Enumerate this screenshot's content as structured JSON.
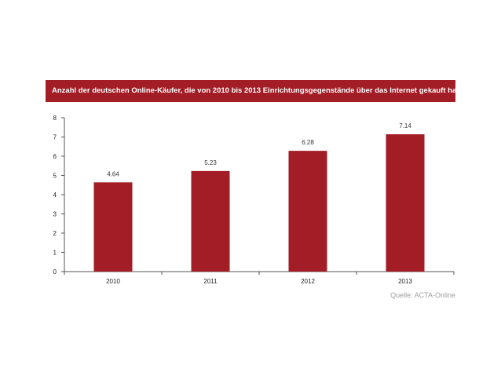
{
  "chart_data": {
    "type": "bar",
    "title": "Anzahl der deutschen Online-Käufer, die von 2010 bis 2013 Einrichtungsgegenstände über das Internet gekauft haben",
    "categories": [
      "2010",
      "2011",
      "2012",
      "2013"
    ],
    "values": [
      4.64,
      5.23,
      6.28,
      7.14
    ],
    "value_labels": [
      "4.64",
      "5.23",
      "6.28",
      "7.14"
    ],
    "xlabel": "",
    "ylabel": "",
    "ylim": [
      0,
      8
    ],
    "yticks": [
      "0",
      "1",
      "2",
      "3",
      "4",
      "5",
      "6",
      "7",
      "8"
    ],
    "grid": false,
    "legend": "none",
    "bar_color": "#a21d26",
    "source": "Quelle: ACTA-Online"
  }
}
